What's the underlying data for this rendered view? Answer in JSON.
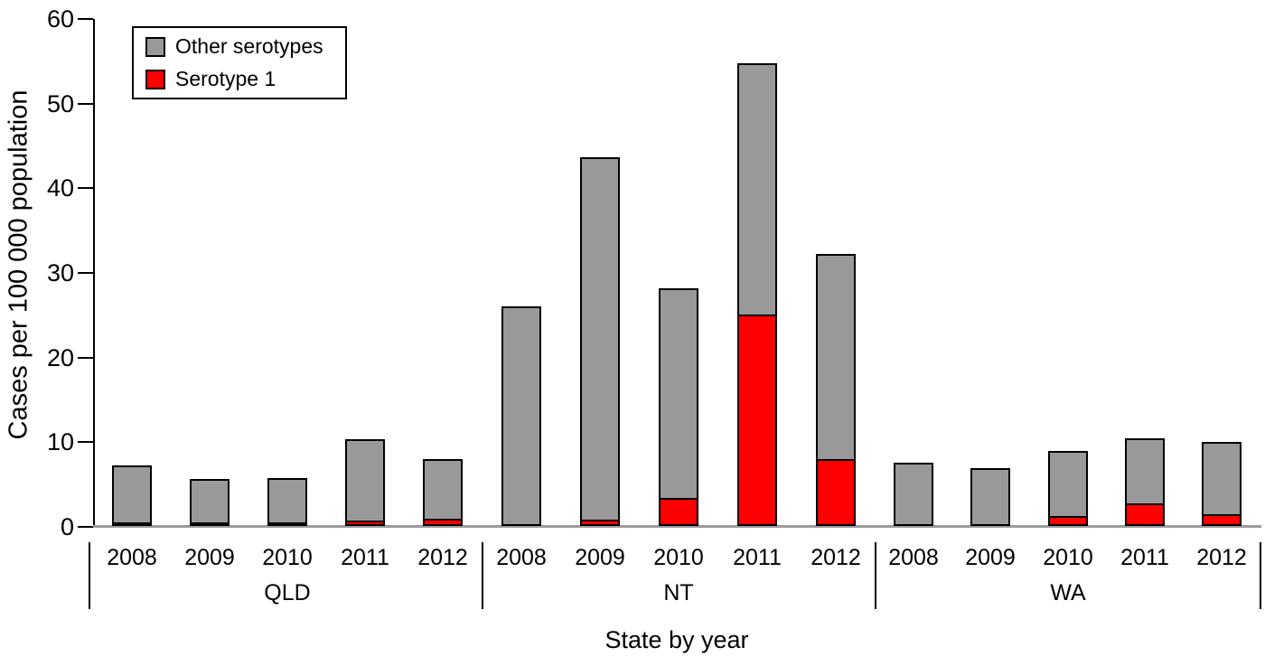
{
  "chart_data": {
    "type": "bar",
    "stacked": true,
    "title": "",
    "xlabel": "State by year",
    "ylabel": "Cases per 100 000 population",
    "ylim": [
      0,
      60
    ],
    "yticks": [
      0,
      10,
      20,
      30,
      40,
      50,
      60
    ],
    "grid": false,
    "legend": {
      "position": "top-left",
      "entries": [
        {
          "label": "Other serotypes",
          "color": "#999999"
        },
        {
          "label": "Serotype 1",
          "color": "#ff0000"
        }
      ]
    },
    "categories": [
      "2008",
      "2009",
      "2010",
      "2011",
      "2012"
    ],
    "groups": [
      {
        "state": "QLD",
        "years": [
          "2008",
          "2009",
          "2010",
          "2011",
          "2012"
        ],
        "serotype1": [
          0.2,
          0.2,
          0.2,
          0.4,
          0.6
        ],
        "other_serotypes": [
          7.0,
          5.3,
          5.5,
          9.9,
          7.3
        ]
      },
      {
        "state": "NT",
        "years": [
          "2008",
          "2009",
          "2010",
          "2011",
          "2012"
        ],
        "serotype1": [
          0,
          0.5,
          3.1,
          24.8,
          7.7
        ],
        "other_serotypes": [
          25.9,
          43.1,
          25.0,
          29.9,
          24.4
        ]
      },
      {
        "state": "WA",
        "years": [
          "2008",
          "2009",
          "2010",
          "2011",
          "2012"
        ],
        "serotype1": [
          0,
          0,
          1.0,
          2.5,
          1.2
        ],
        "other_serotypes": [
          7.5,
          6.8,
          7.9,
          7.9,
          8.7
        ]
      }
    ],
    "colors": {
      "other_serotypes": "#999999",
      "serotype1": "#ff0000",
      "bar_border": "#000000",
      "axis": "#000000",
      "baseline": "#9b9b9b"
    }
  }
}
